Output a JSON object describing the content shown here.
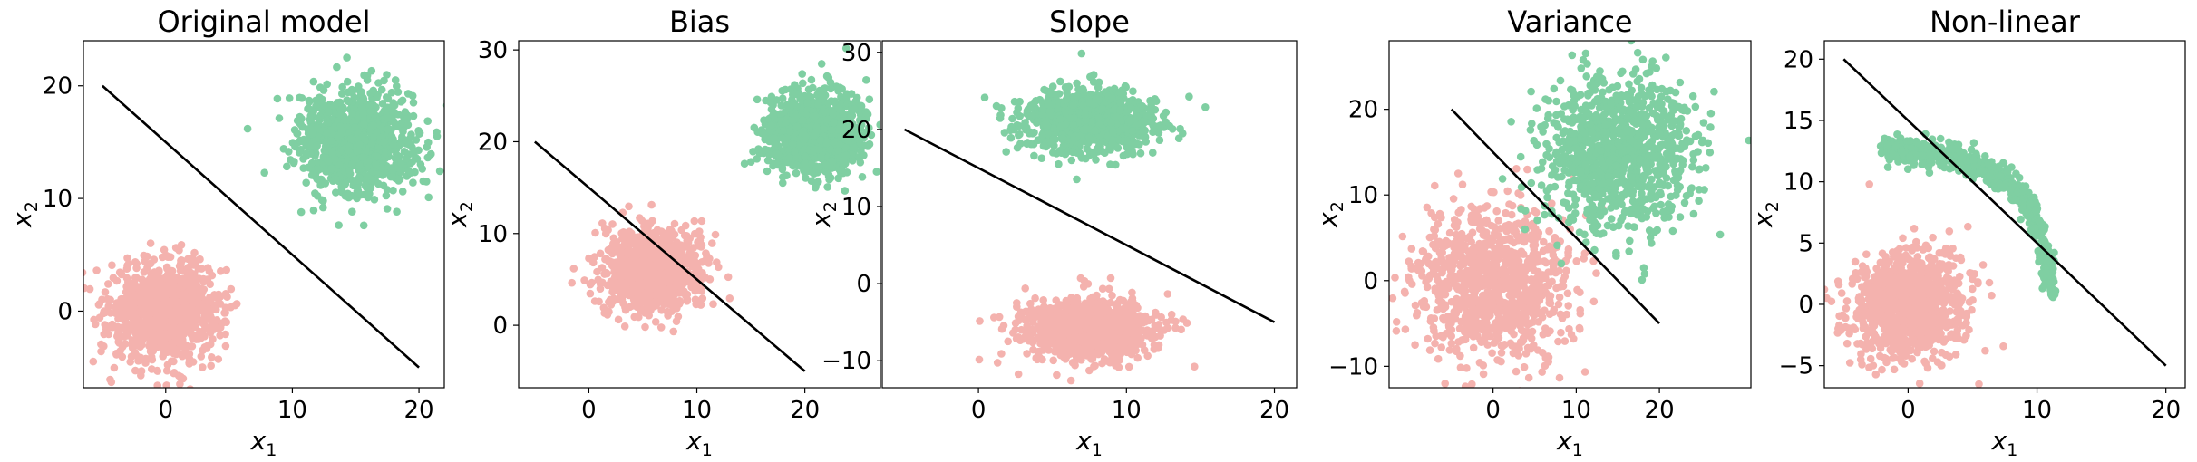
{
  "figure": {
    "colors": {
      "class0": "#f4b2ae",
      "class1": "#7fcfa2",
      "line": "#000000",
      "axis": "#000000"
    },
    "xlabel_main": "x",
    "xlabel_sub": "1",
    "ylabel_main": "x",
    "ylabel_sub": "2"
  },
  "chart_data": [
    {
      "type": "scatter",
      "title": "Original model",
      "xlim": [
        -6.5,
        22
      ],
      "ylim": [
        -6.8,
        24
      ],
      "xticks": [
        0,
        10,
        20
      ],
      "yticks": [
        0,
        10,
        20
      ],
      "xlabel": "x1",
      "ylabel": "x2",
      "grid": false,
      "series": [
        {
          "cluster": {
            "mean": [
              0,
              0
            ],
            "std": [
              2.2,
              2.2
            ],
            "n": 1000
          }
        },
        {
          "cluster": {
            "mean": [
              15,
              15
            ],
            "std": [
              2.3,
              2.3
            ],
            "n": 1000
          }
        }
      ],
      "line": {
        "x": [
          -5,
          20
        ],
        "y": [
          20,
          -5
        ]
      }
    },
    {
      "type": "scatter",
      "title": "Bias",
      "xlim": [
        -6.5,
        27
      ],
      "ylim": [
        -6.8,
        31
      ],
      "xticks": [
        0,
        10,
        20
      ],
      "yticks": [
        0,
        10,
        20,
        30
      ],
      "xlabel": "x1",
      "ylabel": "x2",
      "grid": false,
      "series": [
        {
          "cluster": {
            "mean": [
              6,
              6
            ],
            "std": [
              2.2,
              2.2
            ],
            "n": 1000
          }
        },
        {
          "cluster": {
            "mean": [
              21,
              21
            ],
            "std": [
              2.2,
              2.2
            ],
            "n": 1000
          }
        }
      ],
      "line": {
        "x": [
          -5,
          20
        ],
        "y": [
          20,
          -5
        ]
      }
    },
    {
      "type": "scatter",
      "title": "Slope",
      "xlim": [
        -6.5,
        21.5
      ],
      "ylim": [
        -13.5,
        31.5
      ],
      "xticks": [
        0,
        10,
        20
      ],
      "yticks": [
        -10,
        0,
        10,
        20,
        30
      ],
      "xlabel": "x1",
      "ylabel": "x2",
      "grid": false,
      "series": [
        {
          "cluster": {
            "mean": [
              7.5,
              -6
            ],
            "std": [
              2.2,
              2.0
            ],
            "n": 1000
          }
        },
        {
          "cluster": {
            "mean": [
              7.5,
              21
            ],
            "std": [
              2.2,
              2.0
            ],
            "n": 1000
          }
        }
      ],
      "line": {
        "x": [
          -5,
          20
        ],
        "y": [
          20,
          -5
        ]
      }
    },
    {
      "type": "scatter",
      "title": "Variance",
      "xlim": [
        -12.5,
        31
      ],
      "ylim": [
        -12.5,
        28
      ],
      "xticks": [
        0,
        10,
        20
      ],
      "yticks": [
        -10,
        0,
        10,
        20
      ],
      "xlabel": "x1",
      "ylabel": "x2",
      "grid": false,
      "series": [
        {
          "cluster": {
            "mean": [
              0,
              0
            ],
            "std": [
              4.5,
              4.5
            ],
            "n": 1000
          }
        },
        {
          "cluster": {
            "mean": [
              15,
              15
            ],
            "std": [
              4.5,
              4.5
            ],
            "n": 1000
          }
        }
      ],
      "line": {
        "x": [
          -5,
          20
        ],
        "y": [
          20,
          -5
        ]
      }
    },
    {
      "type": "scatter",
      "title": "Non-linear",
      "xlim": [
        -6.5,
        21.5
      ],
      "ylim": [
        -6.8,
        21.5
      ],
      "xticks": [
        0,
        10,
        20
      ],
      "yticks": [
        -5,
        0,
        5,
        10,
        15,
        20
      ],
      "xlabel": "x1",
      "ylabel": "x2",
      "grid": false,
      "series": [
        {
          "cluster": {
            "mean": [
              0,
              0
            ],
            "std": [
              2.2,
              2.2
            ],
            "n": 1000
          }
        },
        {
          "curve": {
            "x": [
              -1.5,
              0,
              2,
              4,
              5.5,
              7,
              8.5,
              9.5,
              10.2,
              10.8,
              11.2
            ],
            "y": [
              12.8,
              12.5,
              12.2,
              11.8,
              11.3,
              10.5,
              9.3,
              7.8,
              6.0,
              3.5,
              0.8
            ],
            "spread": 0.55,
            "n": 700
          }
        }
      ],
      "line": {
        "x": [
          -5,
          20
        ],
        "y": [
          20,
          -5
        ]
      }
    }
  ]
}
